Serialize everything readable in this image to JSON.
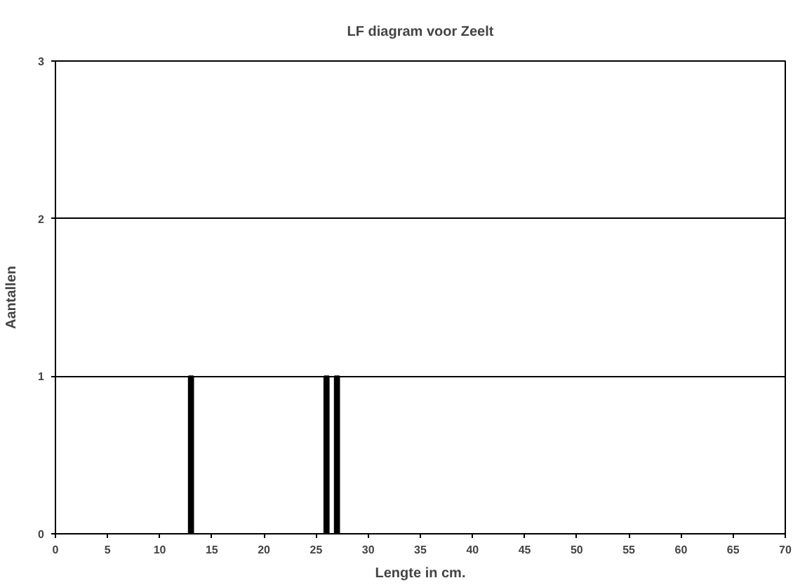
{
  "chart_data": {
    "type": "bar",
    "title": "LF diagram voor Zeelt",
    "xlabel": "Lengte in cm.",
    "ylabel": "Aantallen",
    "x": [
      13,
      26,
      27
    ],
    "values": [
      1,
      1,
      1
    ],
    "color": "#000000",
    "xlim": [
      0,
      70
    ],
    "xticks": [
      0,
      5,
      10,
      15,
      20,
      25,
      30,
      35,
      40,
      45,
      50,
      55,
      60,
      65,
      70
    ],
    "ylim": [
      0,
      3
    ],
    "yticks": [
      0,
      1,
      2,
      3
    ],
    "grid": "y"
  }
}
